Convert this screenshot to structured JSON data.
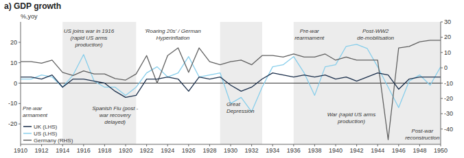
{
  "chart_data": {
    "type": "line",
    "title": "a) GDP growth",
    "y_label": "%,yoy",
    "x": [
      1910,
      1911,
      1912,
      1913,
      1914,
      1915,
      1916,
      1917,
      1918,
      1919,
      1920,
      1921,
      1922,
      1923,
      1924,
      1925,
      1926,
      1927,
      1928,
      1929,
      1930,
      1931,
      1932,
      1933,
      1934,
      1935,
      1936,
      1937,
      1938,
      1939,
      1940,
      1941,
      1942,
      1943,
      1944,
      1945,
      1946,
      1947,
      1948,
      1949,
      1950
    ],
    "xlim": [
      1910,
      1950
    ],
    "xticks": [
      1910,
      1912,
      1914,
      1916,
      1918,
      1920,
      1922,
      1924,
      1926,
      1928,
      1930,
      1932,
      1934,
      1936,
      1938,
      1940,
      1942,
      1944,
      1946,
      1948,
      1950
    ],
    "ylim": [
      -30,
      30
    ],
    "yticks": [
      -20,
      -10,
      0,
      10,
      20
    ],
    "y2lim": [
      -50,
      30
    ],
    "y2ticks": [
      -40,
      -30,
      -20,
      -10,
      0,
      10,
      20,
      30
    ],
    "grid": false,
    "legend": "lower left",
    "series": [
      {
        "name": "UK (LHS)",
        "color": "#1a2e4a",
        "values": [
          3,
          3,
          2,
          4,
          -2,
          2,
          2,
          1,
          0,
          -4,
          -7,
          -6,
          2,
          2,
          3,
          2,
          -4,
          3,
          2,
          3,
          -1,
          -4,
          -2,
          2,
          5,
          4,
          3,
          4,
          3,
          4,
          2,
          3,
          1,
          3,
          5,
          4,
          -3,
          2,
          3,
          3,
          3
        ]
      },
      {
        "name": "US (LHS)",
        "color": "#87ceeb",
        "values": [
          2,
          2,
          4,
          3,
          -2,
          4,
          14,
          1,
          -2,
          -2,
          -6,
          -2,
          5,
          8,
          3,
          5,
          13,
          3,
          4,
          5,
          -10,
          -7,
          -14,
          -2,
          8,
          9,
          13,
          5,
          -6,
          8,
          9,
          18,
          19,
          17,
          8,
          -2,
          -12,
          1,
          4,
          -1,
          8
        ]
      },
      {
        "name": "Germany (RHS)",
        "color": "#606060",
        "axis": "y2",
        "values": [
          4,
          4,
          3,
          5,
          -3,
          -5,
          -2,
          -4,
          -4,
          -7,
          -8,
          -4,
          8,
          -10,
          8,
          13,
          -3,
          13,
          4,
          2,
          4,
          5,
          2,
          8,
          8,
          7,
          9,
          7,
          7,
          9,
          5,
          7,
          5,
          5,
          5,
          -47,
          13,
          14,
          17,
          18,
          18
        ]
      }
    ],
    "shaded_regions": {
      "color": "#e0e0e0",
      "ranges": [
        [
          1914,
          1921
        ],
        [
          1929,
          1933
        ],
        [
          1936,
          1940
        ],
        [
          1940,
          1947
        ],
        [
          1947,
          1950
        ]
      ]
    },
    "annotations": [
      {
        "text": "US joins war in 1916\n(rapid US arms\nproduction)",
        "x": 1916.5,
        "y": 27
      },
      {
        "text": "'Roaring 20s' / German\nHyperinflation",
        "x": 1924.5,
        "y": 27
      },
      {
        "text": "Pre-war\nrearmament",
        "x": 1937.5,
        "y": 27
      },
      {
        "text": "Post-WW2\nde-mobilisation",
        "x": 1943.8,
        "y": 27
      },
      {
        "text": "Pre-war\narmament",
        "x": 1910.2,
        "y": -11
      },
      {
        "text": "Spanish Flu (post -\nwar recovery\ndelayed)",
        "x": 1919.0,
        "y": -11
      },
      {
        "text": "Great\nDepression",
        "x": 1929.6,
        "y": -9
      },
      {
        "text": "War (rapid US arms\nproduction)",
        "x": 1941.5,
        "y": -14
      },
      {
        "text": "Post-war\nreconstruction",
        "x": 1948.3,
        "y": -22
      }
    ]
  }
}
